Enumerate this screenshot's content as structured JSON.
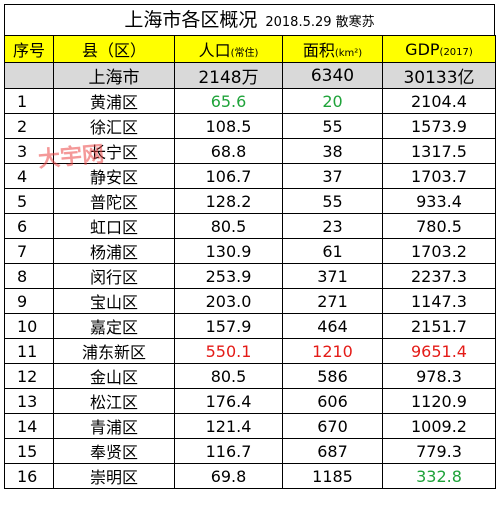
{
  "title": {
    "main": "上海市各区概况",
    "sub": "2018.5.29 散寒苏"
  },
  "header": {
    "no": "序号",
    "district": "县（区）",
    "population": "人口",
    "population_unit": "(常住)",
    "area": "面积",
    "area_unit": "(km²)",
    "gdp": "GDP",
    "gdp_unit": "(2017)"
  },
  "summary": {
    "name": "上海市",
    "population": "2148万",
    "area": "6340",
    "gdp": "30133亿"
  },
  "rows": [
    {
      "no": "1",
      "name": "黄浦区",
      "population": "65.6",
      "area": "20",
      "gdp": "2104.4"
    },
    {
      "no": "2",
      "name": "徐汇区",
      "population": "108.5",
      "area": "55",
      "gdp": "1573.9"
    },
    {
      "no": "3",
      "name": "长宁区",
      "population": "68.8",
      "area": "38",
      "gdp": "1317.5"
    },
    {
      "no": "4",
      "name": "静安区",
      "population": "106.7",
      "area": "37",
      "gdp": "1703.7"
    },
    {
      "no": "5",
      "name": "普陀区",
      "population": "128.2",
      "area": "55",
      "gdp": "933.4"
    },
    {
      "no": "6",
      "name": "虹口区",
      "population": "80.5",
      "area": "23",
      "gdp": "780.5"
    },
    {
      "no": "7",
      "name": "杨浦区",
      "population": "130.9",
      "area": "61",
      "gdp": "1703.2"
    },
    {
      "no": "8",
      "name": "闵行区",
      "population": "253.9",
      "area": "371",
      "gdp": "2237.3"
    },
    {
      "no": "9",
      "name": "宝山区",
      "population": "203.0",
      "area": "271",
      "gdp": "1147.3"
    },
    {
      "no": "10",
      "name": "嘉定区",
      "population": "157.9",
      "area": "464",
      "gdp": "2151.7"
    },
    {
      "no": "11",
      "name": "浦东新区",
      "population": "550.1",
      "area": "1210",
      "gdp": "9651.4"
    },
    {
      "no": "12",
      "name": "金山区",
      "population": "80.5",
      "area": "586",
      "gdp": "978.3"
    },
    {
      "no": "13",
      "name": "松江区",
      "population": "176.4",
      "area": "606",
      "gdp": "1120.9"
    },
    {
      "no": "14",
      "name": "青浦区",
      "population": "121.4",
      "area": "670",
      "gdp": "1009.2"
    },
    {
      "no": "15",
      "name": "奉贤区",
      "population": "116.7",
      "area": "687",
      "gdp": "779.3"
    },
    {
      "no": "16",
      "name": "崇明区",
      "population": "69.8",
      "area": "1185",
      "gdp": "332.8"
    }
  ],
  "watermark": "大宇网",
  "colors": {
    "header_bg": "#ffff00",
    "summary_bg": "#d9d9d9",
    "min_highlight": "#1fa33a",
    "max_highlight": "#e41b17"
  }
}
